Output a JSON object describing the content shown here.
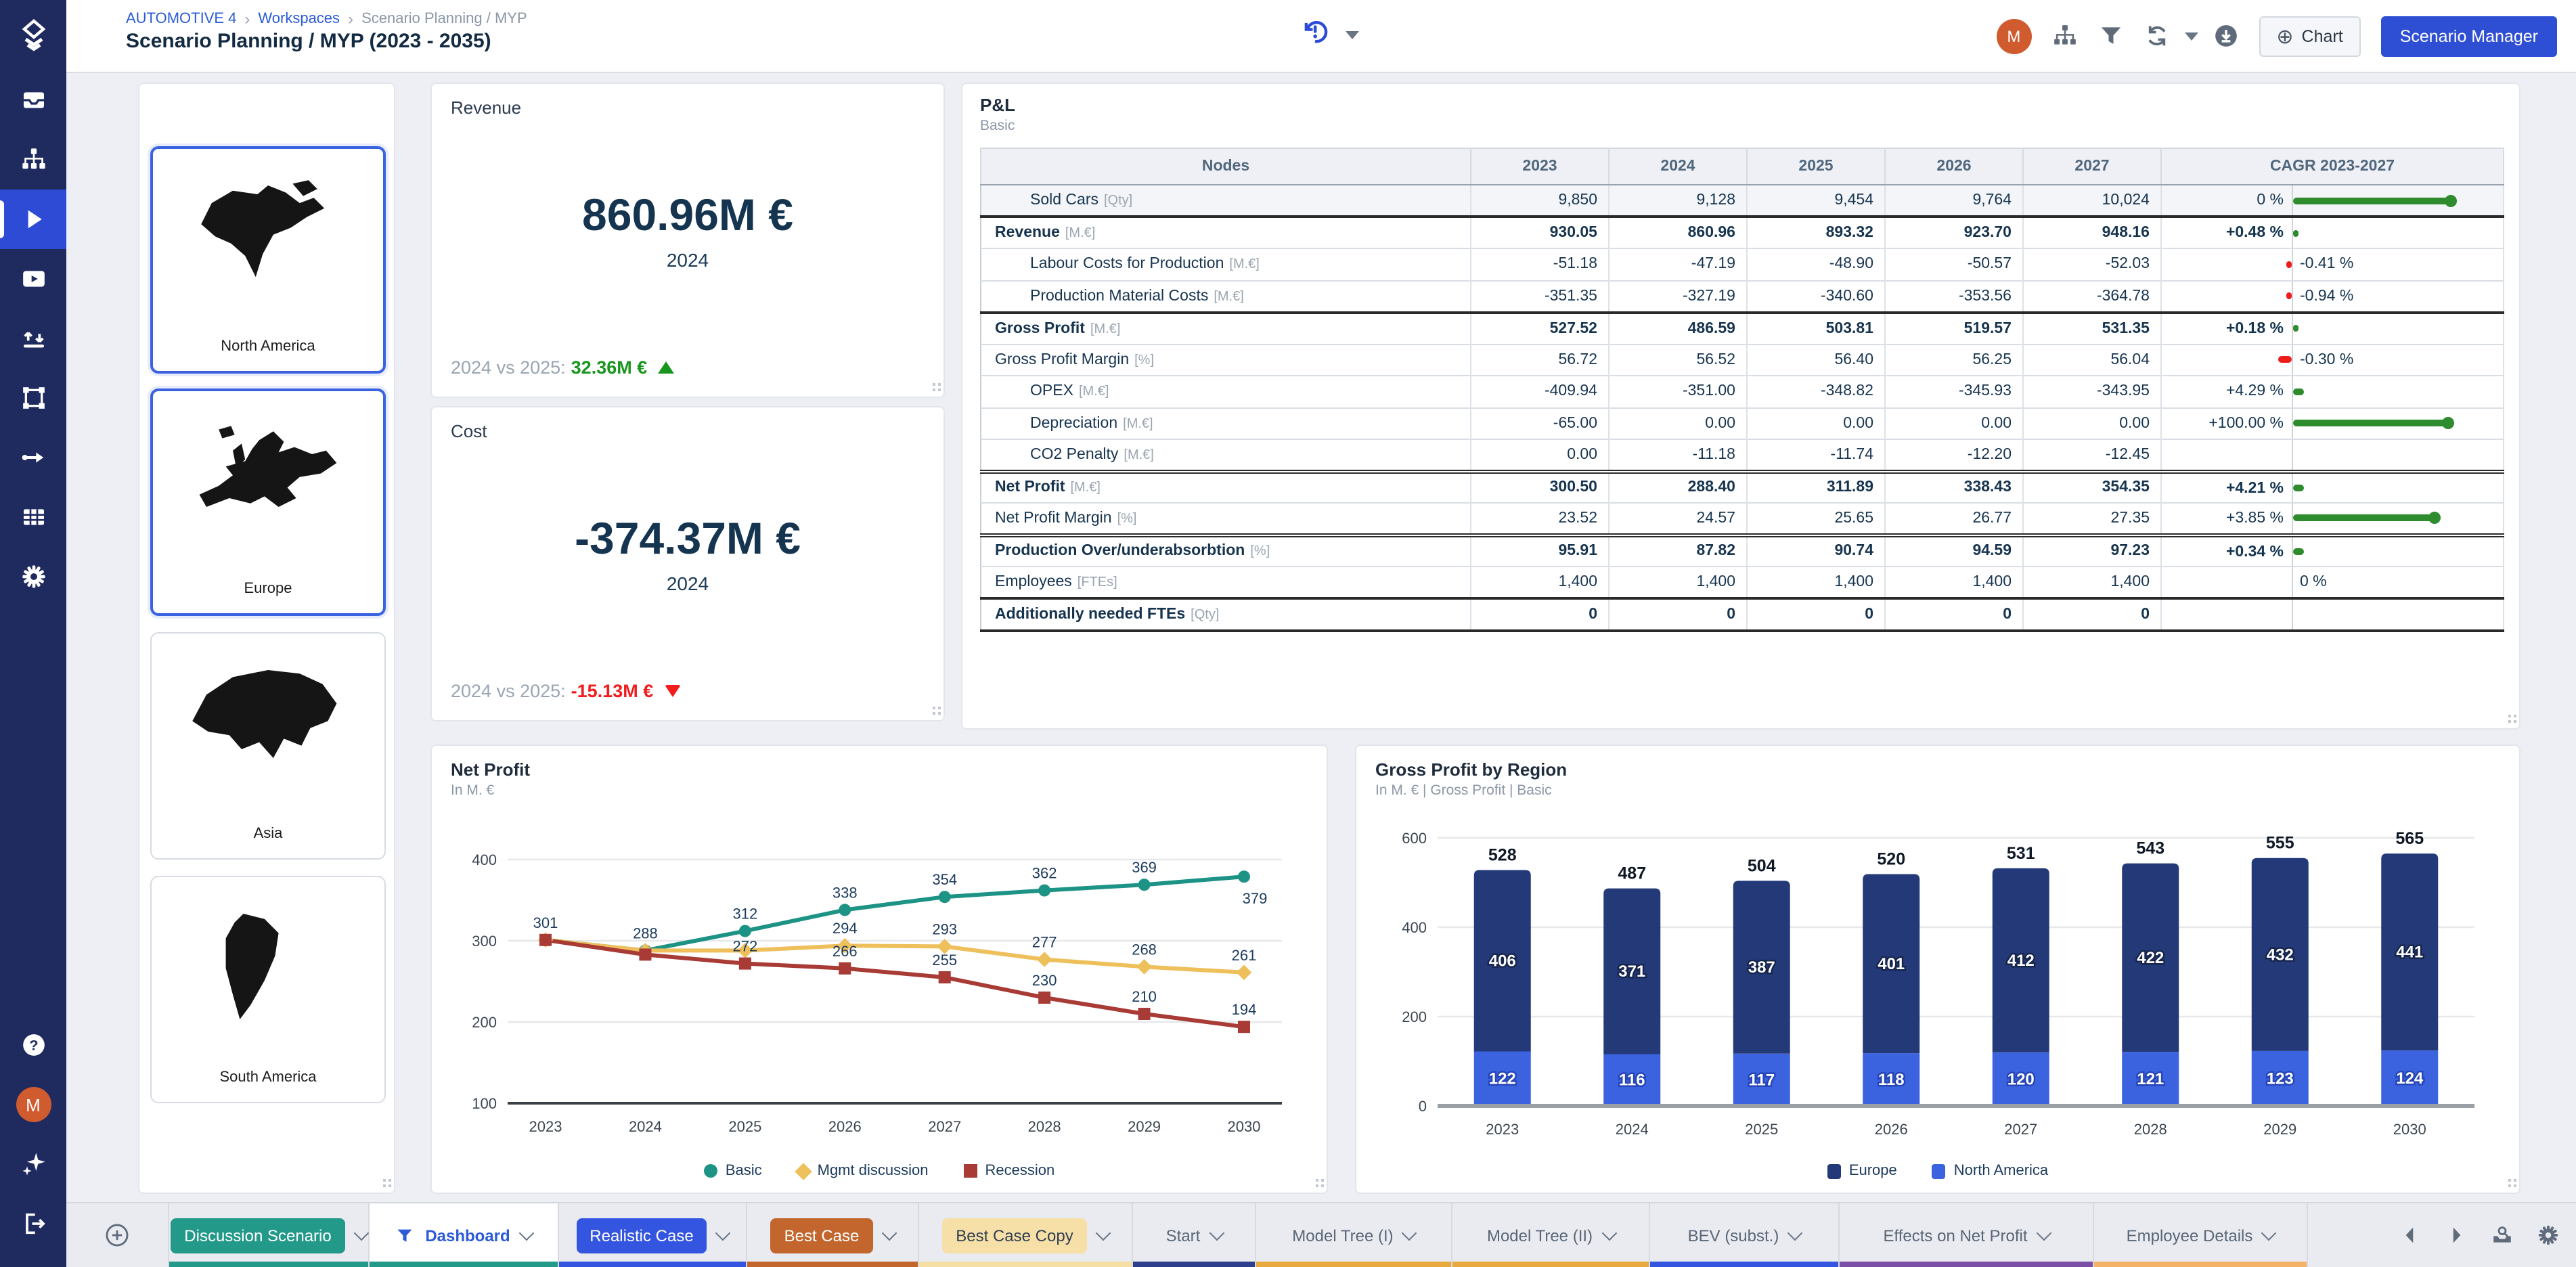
{
  "header": {
    "breadcrumb": [
      {
        "label": "AUTOMOTIVE 4",
        "link": true
      },
      {
        "label": "Workspaces",
        "link": true
      },
      {
        "label": "Scenario Planning / MYP",
        "link": false
      }
    ],
    "title": "Scenario Planning / MYP (2023 - 2035)",
    "history_icon": "history-alert-icon",
    "actions": {
      "avatar_initial": "M",
      "icons": [
        "hierarchy",
        "funnel",
        "refresh",
        "caret-down",
        "download"
      ],
      "chart_button": "Chart",
      "scenario_manager_button": "Scenario Manager"
    }
  },
  "sidebar": {
    "top": [
      {
        "name": "logo",
        "active": false
      },
      {
        "name": "inbox",
        "active": false
      },
      {
        "name": "hierarchy",
        "active": false
      },
      {
        "name": "play",
        "active": true
      },
      {
        "name": "presentation",
        "active": false
      },
      {
        "name": "transfer",
        "active": false
      },
      {
        "name": "frame",
        "active": false
      },
      {
        "name": "flow",
        "active": false
      },
      {
        "name": "table",
        "active": false
      },
      {
        "name": "settings",
        "active": false
      }
    ],
    "bottom": [
      {
        "name": "help"
      },
      {
        "name": "user",
        "initial": "M"
      },
      {
        "name": "sparkles"
      },
      {
        "name": "logout"
      }
    ]
  },
  "regions": [
    {
      "name": "North America",
      "selected": true
    },
    {
      "name": "Europe",
      "selected": true
    },
    {
      "name": "Asia",
      "selected": false
    },
    {
      "name": "South America",
      "selected": false
    }
  ],
  "kpi_cards": [
    {
      "title": "Revenue",
      "value": "860.96M €",
      "year": "2024",
      "compare_label": "2024 vs 2025:",
      "delta": "32.36M €",
      "trend": "up",
      "delta_color": "#18961e"
    },
    {
      "title": "Cost",
      "value": "-374.37M €",
      "year": "2024",
      "compare_label": "2024 vs 2025:",
      "delta": "-15.13M €",
      "trend": "down",
      "delta_color": "#f11d1d"
    }
  ],
  "pnl": {
    "title": "P&L",
    "subtitle": "Basic",
    "columns": [
      "Nodes",
      "2023",
      "2024",
      "2025",
      "2026",
      "2027",
      "CAGR 2023-2027"
    ],
    "rows": [
      {
        "name": "Sold Cars",
        "unit": "[Qty]",
        "indent": 1,
        "bold": false,
        "shade": true,
        "sep": "none",
        "values": [
          "9,850",
          "9,128",
          "9,454",
          "9,764",
          "10,024"
        ],
        "cagr": {
          "text": "0 %",
          "side": "left",
          "bar": "pos",
          "len": 118,
          "color": "#2e8b2e"
        }
      },
      {
        "name": "Revenue",
        "unit": "[M.€]",
        "indent": 0,
        "bold": true,
        "sep": "strong",
        "values": [
          "930.05",
          "860.96",
          "893.32",
          "923.70",
          "948.16"
        ],
        "cagr": {
          "text": "+0.48 %",
          "bold": true,
          "side": "left",
          "bar": "pos",
          "len": 4,
          "color": "#2e8b2e"
        }
      },
      {
        "name": "Labour Costs for Production",
        "unit": "[M.€]",
        "indent": 1,
        "bold": false,
        "sep": "light",
        "values": [
          "-51.18",
          "-47.19",
          "-48.90",
          "-50.57",
          "-52.03"
        ],
        "cagr": {
          "text": "-0.41 %",
          "side": "right",
          "bar": "neg",
          "len": 4,
          "color": "#ee1b1b"
        }
      },
      {
        "name": "Production Material Costs",
        "unit": "[M.€]",
        "indent": 1,
        "bold": false,
        "sep": "light",
        "values": [
          "-351.35",
          "-327.19",
          "-340.60",
          "-353.56",
          "-364.78"
        ],
        "cagr": {
          "text": "-0.94 %",
          "side": "right",
          "bar": "neg",
          "len": 4,
          "color": "#ee1b1b"
        }
      },
      {
        "name": "Gross Profit",
        "unit": "[M.€]",
        "indent": 0,
        "bold": true,
        "sep": "strong",
        "values": [
          "527.52",
          "486.59",
          "503.81",
          "519.57",
          "531.35"
        ],
        "cagr": {
          "text": "+0.18 %",
          "bold": true,
          "side": "left",
          "bar": "pos",
          "len": 4,
          "color": "#2e8b2e"
        }
      },
      {
        "name": "Gross Profit Margin",
        "unit": "[%]",
        "indent": 0,
        "bold": false,
        "sep": "light",
        "values": [
          "56.72",
          "56.52",
          "56.40",
          "56.25",
          "56.04"
        ],
        "cagr": {
          "text": "-0.30 %",
          "side": "right",
          "bar": "neg",
          "len": 10,
          "color": "#ee1b1b"
        }
      },
      {
        "name": "OPEX",
        "unit": "[M.€]",
        "indent": 1,
        "bold": false,
        "sep": "light",
        "values": [
          "-409.94",
          "-351.00",
          "-348.82",
          "-345.93",
          "-343.95"
        ],
        "cagr": {
          "text": "+4.29 %",
          "side": "left",
          "bar": "pos",
          "len": 8,
          "color": "#2e8b2e"
        }
      },
      {
        "name": "Depreciation",
        "unit": "[M.€]",
        "indent": 1,
        "bold": false,
        "sep": "light",
        "values": [
          "-65.00",
          "0.00",
          "0.00",
          "0.00",
          "0.00"
        ],
        "cagr": {
          "text": "+100.00 %",
          "side": "left",
          "bar": "pos",
          "len": 116,
          "color": "#2e8b2e"
        }
      },
      {
        "name": "CO2 Penalty",
        "unit": "[M.€]",
        "indent": 1,
        "bold": false,
        "sep": "light",
        "values": [
          "0.00",
          "-11.18",
          "-11.74",
          "-12.20",
          "-12.45"
        ],
        "cagr": null
      },
      {
        "name": "Net Profit",
        "unit": "[M.€]",
        "indent": 0,
        "bold": true,
        "sep": "double",
        "values": [
          "300.50",
          "288.40",
          "311.89",
          "338.43",
          "354.35"
        ],
        "cagr": {
          "text": "+4.21 %",
          "bold": true,
          "side": "left",
          "bar": "pos",
          "len": 8,
          "color": "#2e8b2e"
        }
      },
      {
        "name": "Net Profit Margin",
        "unit": "[%]",
        "indent": 0,
        "bold": false,
        "sep": "light",
        "values": [
          "23.52",
          "24.57",
          "25.65",
          "26.77",
          "27.35"
        ],
        "cagr": {
          "text": "+3.85 %",
          "side": "left",
          "bar": "pos",
          "len": 106,
          "color": "#2e8b2e"
        }
      },
      {
        "name": "Production Over/underabsorbtion",
        "unit": "[%]",
        "indent": 0,
        "bold": true,
        "sep": "double",
        "values": [
          "95.91",
          "87.82",
          "90.74",
          "94.59",
          "97.23"
        ],
        "cagr": {
          "text": "+0.34 %",
          "bold": true,
          "side": "left",
          "bar": "pos",
          "len": 8,
          "color": "#2e8b2e"
        }
      },
      {
        "name": "Employees",
        "unit": "[FTEs]",
        "indent": 0,
        "bold": false,
        "sep": "light",
        "values": [
          "1,400",
          "1,400",
          "1,400",
          "1,400",
          "1,400"
        ],
        "cagr": {
          "text": "0 %",
          "side": "right",
          "bar": "none",
          "len": 0,
          "color": ""
        }
      },
      {
        "name": "Additionally needed FTEs",
        "unit": "[Qty]",
        "indent": 0,
        "bold": true,
        "sep": "strong",
        "values": [
          "0",
          "0",
          "0",
          "0",
          "0"
        ],
        "cagr": null
      }
    ]
  },
  "chart_data": [
    {
      "type": "line",
      "title": "Net Profit",
      "subtitle": "In M. €",
      "x": [
        "2023",
        "2024",
        "2025",
        "2026",
        "2027",
        "2028",
        "2029",
        "2030"
      ],
      "ylim": [
        100,
        430
      ],
      "yticks": [
        100,
        200,
        300,
        400
      ],
      "grid": true,
      "legend_position": "bottom",
      "series": [
        {
          "name": "Basic",
          "color": "#1d9385",
          "marker": "circle",
          "values": [
            301,
            288,
            312,
            338,
            354,
            362,
            369,
            379
          ],
          "labels": [
            null,
            288,
            312,
            338,
            354,
            362,
            369,
            379
          ]
        },
        {
          "name": "Mgmt discussion",
          "color": "#eec05c",
          "marker": "diamond",
          "values": [
            301,
            288,
            288,
            294,
            293,
            277,
            268,
            261
          ],
          "labels": [
            null,
            null,
            null,
            294,
            293,
            277,
            268,
            261
          ]
        },
        {
          "name": "Recession",
          "color": "#a83b35",
          "marker": "square",
          "values": [
            301,
            283,
            272,
            266,
            255,
            230,
            210,
            194
          ],
          "labels": [
            301,
            null,
            272,
            266,
            255,
            230,
            210,
            194
          ]
        }
      ]
    },
    {
      "type": "bar",
      "stacked": true,
      "title": "Gross Profit by Region",
      "subtitle": "In M. € | Gross Profit | Basic",
      "categories": [
        "2023",
        "2024",
        "2025",
        "2026",
        "2027",
        "2028",
        "2029",
        "2030"
      ],
      "ylim": [
        0,
        600
      ],
      "yticks": [
        0,
        200,
        400,
        600
      ],
      "grid": true,
      "legend_position": "bottom",
      "series": [
        {
          "name": "Europe",
          "color": "#243a78",
          "stack": "top",
          "values": [
            406,
            371,
            387,
            401,
            412,
            422,
            432,
            441
          ]
        },
        {
          "name": "North America",
          "color": "#3b63e0",
          "stack": "bottom",
          "values": [
            122,
            116,
            117,
            118,
            120,
            121,
            123,
            124
          ]
        }
      ],
      "totals": [
        528,
        487,
        504,
        520,
        531,
        543,
        555,
        565
      ]
    }
  ],
  "bottom_bar": {
    "add_icon": "plus-circle",
    "tabs": [
      {
        "label": "Discussion Scenario",
        "type": "pill",
        "pill_bg": "#23998a",
        "pill_text": "#ffffff",
        "strip": "#23998a",
        "width": 148
      },
      {
        "label": "Dashboard",
        "type": "active",
        "icon": "funnel",
        "strip": "#23998a",
        "width": 140
      },
      {
        "label": "Realistic Case",
        "type": "pill",
        "pill_bg": "#3355e0",
        "pill_text": "#ffffff",
        "strip": "#3355e0",
        "width": 139
      },
      {
        "label": "Best Case",
        "type": "pill",
        "pill_bg": "#c2662d",
        "pill_text": "#ffffff",
        "strip": "#c2662d",
        "width": 127
      },
      {
        "label": "Best Case Copy",
        "type": "pill",
        "pill_bg": "#f6e0a8",
        "pill_text": "#333f52",
        "strip": "#f6dfa5",
        "width": 158
      },
      {
        "label": "Start",
        "type": "plain",
        "strip": "#2d3f8c",
        "width": 91
      },
      {
        "label": "Model Tree (I)",
        "type": "plain",
        "strip": "#e8a93e",
        "width": 145
      },
      {
        "label": "Model Tree (II)",
        "type": "plain",
        "strip": "#e8a93e",
        "width": 146
      },
      {
        "label": "BEV (subst.)",
        "type": "plain",
        "strip": "#3355e0",
        "width": 140
      },
      {
        "label": "Effects on Net Profit",
        "type": "plain",
        "strip": "#7b4fa6",
        "width": 188
      },
      {
        "label": "Employee Details",
        "type": "plain",
        "strip": "#f4b269",
        "width": 158
      }
    ],
    "icons": [
      "chevron-left",
      "chevron-right",
      "export-search",
      "settings"
    ]
  }
}
